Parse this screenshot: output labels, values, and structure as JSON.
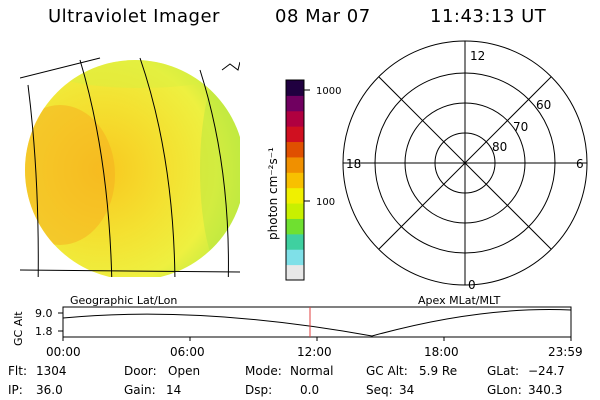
{
  "header": {
    "title": "Ultraviolet Imager",
    "date": "08 Mar 07",
    "time": "11:43:13 UT"
  },
  "colorbar": {
    "unit_label": "photon cm⁻²s⁻¹",
    "tick_1000": "1000",
    "tick_100": "100",
    "colors": [
      "#e8e8e8",
      "#7fe0e8",
      "#3fd0a0",
      "#6fe030",
      "#c8f000",
      "#f0f000",
      "#f8c000",
      "#f09000",
      "#e05000",
      "#d01020",
      "#b00040",
      "#700060",
      "#200040"
    ]
  },
  "polar": {
    "mlt_labels": {
      "top": "12",
      "left": "18",
      "right": "6",
      "bottom": "0"
    },
    "lat_labels": [
      "60",
      "70",
      "80"
    ]
  },
  "orbit": {
    "panel_left_label": "Geographic Lat/Lon",
    "panel_right_label": "Apex MLat/MLT",
    "y_axis_label": "GC Alt",
    "y_ticks": [
      "9.0",
      "1.8"
    ],
    "x_ticks": [
      "00:00",
      "06:00",
      "12:00",
      "18:00",
      "23:59"
    ],
    "marker_color": "#e04040"
  },
  "status": {
    "flt_label": "Flt:",
    "flt_value": "1304",
    "ip_label": "IP:",
    "ip_value": "36.0",
    "door_label": "Door:",
    "door_value": "Open",
    "gain_label": "Gain:",
    "gain_value": "14",
    "mode_label": "Mode:",
    "mode_value": "Normal",
    "dsp_label": "Dsp:",
    "dsp_value": "0.0",
    "gcalt_label": "GC Alt:",
    "gcalt_value": "5.9 Re",
    "seq_label": "Seq:",
    "seq_value": "34",
    "glat_label": "GLat:",
    "glat_value": "−24.7",
    "glon_label": "GLon:",
    "glon_value": "340.3"
  }
}
